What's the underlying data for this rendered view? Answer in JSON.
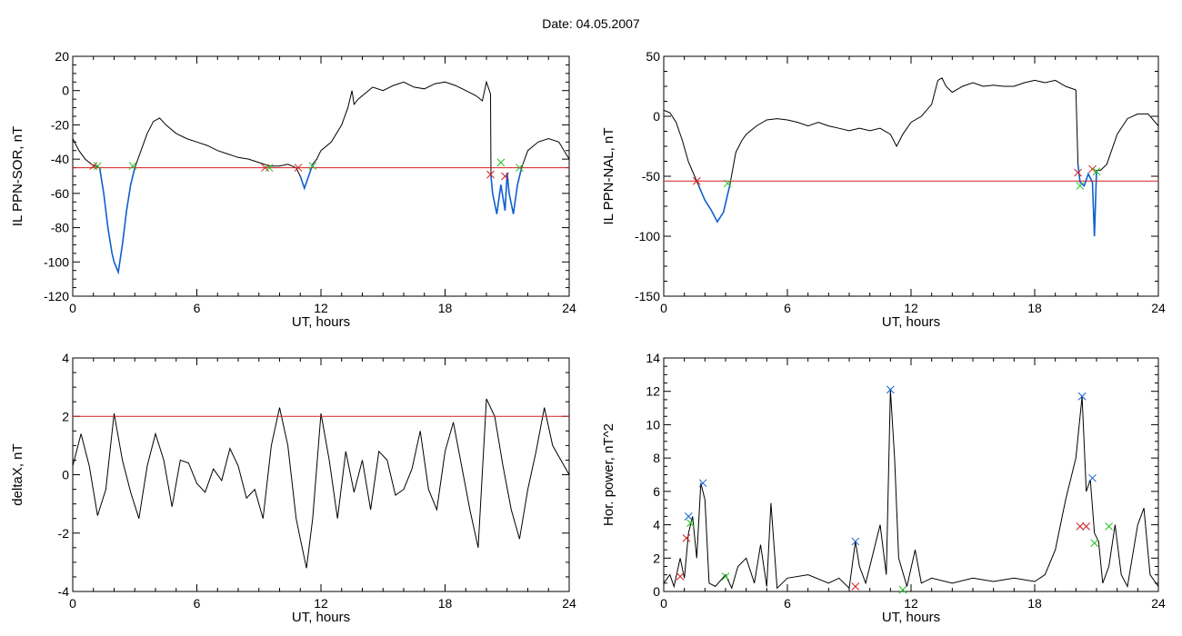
{
  "title": "Date:  04.05.2007",
  "colors": {
    "threshold": "#d02020",
    "event": "#1060d0",
    "trace": "#000000",
    "start_marker": "#d02020",
    "end_marker": "#20c020",
    "peak_marker": "#1060d0"
  },
  "chart_data": [
    {
      "id": "ppn-sor",
      "type": "line",
      "xlabel": "UT, hours",
      "ylabel": "IL PPN-SOR, nT",
      "xlim": [
        0,
        24
      ],
      "ylim": [
        -120,
        20
      ],
      "xticks": [
        0,
        6,
        12,
        18,
        24
      ],
      "yticks": [
        -120,
        -100,
        -80,
        -60,
        -40,
        -20,
        0,
        20
      ],
      "threshold": -45,
      "series": [
        {
          "style": "trace",
          "x": [
            0,
            0.3,
            0.6,
            0.9,
            1.1,
            1.3,
            1.5,
            1.7,
            1.9,
            2.0,
            2.2,
            2.4,
            2.6,
            2.8,
            3.0,
            3.3,
            3.6,
            3.9,
            4.2,
            4.5,
            5,
            5.5,
            6,
            6.5,
            7,
            7.5,
            8,
            8.5,
            9,
            9.5,
            10,
            10.4,
            10.8,
            11.0,
            11.2,
            11.4,
            11.6,
            11.8,
            12,
            12.5,
            13,
            13.3,
            13.5,
            13.6,
            13.8,
            14,
            14.5,
            15,
            15.5,
            16,
            16.5,
            17,
            17.5,
            18,
            18.5,
            19,
            19.5,
            19.8,
            20.0,
            20.2,
            20.22,
            20.3,
            20.5,
            20.7,
            20.9,
            21.0,
            21.1,
            21.3,
            21.5,
            21.7,
            22,
            22.5,
            23,
            23.5,
            24
          ],
          "y": [
            -28,
            -35,
            -40,
            -43,
            -44,
            -45,
            -60,
            -80,
            -95,
            -100,
            -106,
            -90,
            -70,
            -55,
            -45,
            -35,
            -25,
            -18,
            -16,
            -20,
            -25,
            -28,
            -30,
            -32,
            -35,
            -37,
            -39,
            -40,
            -42,
            -44,
            -44,
            -43,
            -45,
            -50,
            -57,
            -50,
            -43,
            -40,
            -35,
            -30,
            -20,
            -10,
            0,
            -8,
            -5,
            -3,
            2,
            0,
            3,
            5,
            2,
            1,
            4,
            5,
            3,
            0,
            -3,
            -6,
            5,
            -2,
            -50,
            -60,
            -72,
            -55,
            -70,
            -48,
            -60,
            -72,
            -55,
            -45,
            -35,
            -30,
            -28,
            -30,
            -40
          ]
        }
      ],
      "events": [
        [
          1.3,
          3.0
        ],
        [
          10.9,
          11.6
        ],
        [
          20.22,
          21.8
        ]
      ],
      "start_markers": [
        [
          1.0,
          -44
        ],
        [
          9.3,
          -45
        ],
        [
          10.9,
          -45
        ],
        [
          20.2,
          -49
        ],
        [
          20.9,
          -50
        ]
      ],
      "end_markers": [
        [
          1.2,
          -44
        ],
        [
          2.9,
          -44
        ],
        [
          9.5,
          -45
        ],
        [
          11.6,
          -44
        ],
        [
          20.7,
          -42
        ],
        [
          21.6,
          -45
        ]
      ]
    },
    {
      "id": "ppn-nal",
      "type": "line",
      "xlabel": "UT, hours",
      "ylabel": "IL PPN-NAL, nT",
      "xlim": [
        0,
        24
      ],
      "ylim": [
        -150,
        50
      ],
      "xticks": [
        0,
        6,
        12,
        18,
        24
      ],
      "yticks": [
        -150,
        -100,
        -50,
        0,
        50
      ],
      "threshold": -54,
      "series": [
        {
          "style": "trace",
          "x": [
            0,
            0.3,
            0.6,
            0.9,
            1.2,
            1.5,
            1.7,
            2.0,
            2.3,
            2.6,
            2.9,
            3.2,
            3.5,
            3.8,
            4,
            4.5,
            5,
            5.5,
            6,
            6.5,
            7,
            7.5,
            8,
            8.5,
            9,
            9.5,
            10,
            10.5,
            11,
            11.3,
            11.6,
            12,
            12.5,
            13,
            13.3,
            13.5,
            13.7,
            14,
            14.5,
            15,
            15.5,
            16,
            16.5,
            17,
            17.5,
            18,
            18.5,
            19,
            19.5,
            20.0,
            20.1,
            20.2,
            20.4,
            20.6,
            20.8,
            20.9,
            21.0,
            21.2,
            21.5,
            22,
            22.5,
            23,
            23.5,
            24
          ],
          "y": [
            5,
            3,
            -5,
            -20,
            -38,
            -50,
            -58,
            -70,
            -78,
            -88,
            -80,
            -58,
            -30,
            -20,
            -15,
            -8,
            -3,
            -2,
            -3,
            -5,
            -8,
            -5,
            -8,
            -10,
            -12,
            -10,
            -12,
            -10,
            -15,
            -25,
            -15,
            -5,
            0,
            10,
            30,
            32,
            25,
            20,
            25,
            28,
            25,
            26,
            25,
            25,
            28,
            30,
            28,
            30,
            25,
            22,
            -40,
            -55,
            -58,
            -48,
            -55,
            -100,
            -45,
            -45,
            -40,
            -15,
            -2,
            2,
            2,
            -8
          ]
        }
      ],
      "events": [
        [
          1.7,
          3.3
        ],
        [
          20.1,
          21.0
        ]
      ],
      "start_markers": [
        [
          1.6,
          -54
        ],
        [
          20.1,
          -47
        ],
        [
          20.8,
          -44
        ]
      ],
      "end_markers": [
        [
          3.1,
          -56
        ],
        [
          20.2,
          -58
        ],
        [
          21.0,
          -46
        ]
      ]
    },
    {
      "id": "deltax",
      "type": "line",
      "xlabel": "UT, hours",
      "ylabel": "deltaX, nT",
      "xlim": [
        0,
        24
      ],
      "ylim": [
        -4,
        4
      ],
      "xticks": [
        0,
        6,
        12,
        18,
        24
      ],
      "yticks": [
        -4,
        -2,
        0,
        2,
        4
      ],
      "threshold": 2,
      "series": [
        {
          "style": "trace",
          "x": [
            0,
            0.4,
            0.8,
            1.2,
            1.6,
            2.0,
            2.4,
            2.8,
            3.2,
            3.6,
            4.0,
            4.4,
            4.8,
            5.2,
            5.6,
            6.0,
            6.4,
            6.8,
            7.2,
            7.6,
            8.0,
            8.4,
            8.8,
            9.2,
            9.6,
            10.0,
            10.4,
            10.8,
            11.0,
            11.3,
            11.6,
            12.0,
            12.4,
            12.8,
            13.2,
            13.6,
            14.0,
            14.4,
            14.8,
            15.2,
            15.6,
            16.0,
            16.4,
            16.8,
            17.2,
            17.6,
            18.0,
            18.4,
            18.8,
            19.2,
            19.6,
            20.0,
            20.4,
            20.8,
            21.2,
            21.6,
            22.0,
            22.4,
            22.8,
            23.2,
            23.6,
            24
          ],
          "y": [
            0.3,
            1.4,
            0.3,
            -1.4,
            -0.5,
            2.1,
            0.5,
            -0.6,
            -1.5,
            0.3,
            1.4,
            0.5,
            -1.1,
            0.5,
            0.4,
            -0.3,
            -0.6,
            0.2,
            -0.2,
            0.9,
            0.3,
            -0.8,
            -0.5,
            -1.5,
            1.0,
            2.3,
            1.0,
            -1.5,
            -2.2,
            -3.2,
            -1.5,
            2.1,
            0.5,
            -1.5,
            0.8,
            -0.6,
            0.5,
            -1.2,
            0.8,
            0.5,
            -0.7,
            -0.5,
            0.2,
            1.5,
            -0.5,
            -1.2,
            0.8,
            1.8,
            0.3,
            -1.2,
            -2.5,
            2.6,
            2.0,
            0.3,
            -1.2,
            -2.2,
            -0.5,
            0.8,
            2.3,
            1.0,
            0.5,
            0.0
          ]
        }
      ]
    },
    {
      "id": "hor-power",
      "type": "line",
      "xlabel": "UT, hours",
      "ylabel": "Hor. power, nT^2",
      "xlim": [
        0,
        24
      ],
      "ylim": [
        0,
        14
      ],
      "xticks": [
        0,
        6,
        12,
        18,
        24
      ],
      "yticks": [
        0,
        2,
        4,
        6,
        8,
        10,
        12,
        14
      ],
      "series": [
        {
          "style": "trace",
          "x": [
            0,
            0.3,
            0.5,
            0.8,
            1.0,
            1.2,
            1.4,
            1.6,
            1.8,
            2.0,
            2.2,
            2.5,
            3.0,
            3.3,
            3.6,
            4.0,
            4.4,
            4.7,
            5.0,
            5.2,
            5.5,
            6,
            7,
            8,
            8.5,
            9.0,
            9.3,
            9.5,
            9.8,
            10.2,
            10.5,
            10.8,
            11.0,
            11.2,
            11.4,
            11.8,
            12.2,
            12.5,
            13,
            14,
            15,
            16,
            17,
            18,
            18.5,
            19.0,
            19.5,
            20.0,
            20.3,
            20.5,
            20.7,
            20.9,
            21.1,
            21.3,
            21.6,
            21.9,
            22.2,
            22.5,
            23,
            23.3,
            23.6,
            24
          ],
          "y": [
            0.5,
            1.0,
            0.3,
            2.0,
            0.8,
            3.5,
            4.5,
            2.0,
            6.5,
            5.5,
            0.5,
            0.3,
            1.0,
            0.2,
            1.5,
            2.0,
            0.5,
            2.8,
            0.3,
            5.3,
            0.2,
            0.8,
            1.0,
            0.5,
            0.8,
            0.2,
            3.0,
            1.5,
            0.5,
            2.5,
            4.0,
            1.0,
            12.1,
            8.0,
            2.0,
            0.3,
            2.5,
            0.5,
            0.8,
            0.5,
            0.8,
            0.6,
            0.8,
            0.6,
            1.0,
            2.5,
            5.5,
            8.0,
            11.7,
            6.0,
            6.7,
            3.5,
            3.0,
            0.5,
            1.5,
            4.0,
            1.0,
            0.3,
            4.0,
            5.0,
            1.0,
            0.3
          ]
        }
      ],
      "start_markers": [
        [
          0.8,
          0.9
        ],
        [
          1.1,
          3.2
        ],
        [
          9.3,
          0.3
        ],
        [
          20.2,
          3.9
        ],
        [
          20.5,
          3.9
        ]
      ],
      "end_markers": [
        [
          1.3,
          4.1
        ],
        [
          3.0,
          0.9
        ],
        [
          11.6,
          0.1
        ],
        [
          20.9,
          2.9
        ],
        [
          21.6,
          3.9
        ]
      ],
      "peak_markers": [
        [
          1.2,
          4.5
        ],
        [
          1.9,
          6.5
        ],
        [
          9.3,
          3.0
        ],
        [
          11.0,
          12.1
        ],
        [
          20.3,
          11.7
        ],
        [
          20.8,
          6.8
        ]
      ]
    }
  ]
}
